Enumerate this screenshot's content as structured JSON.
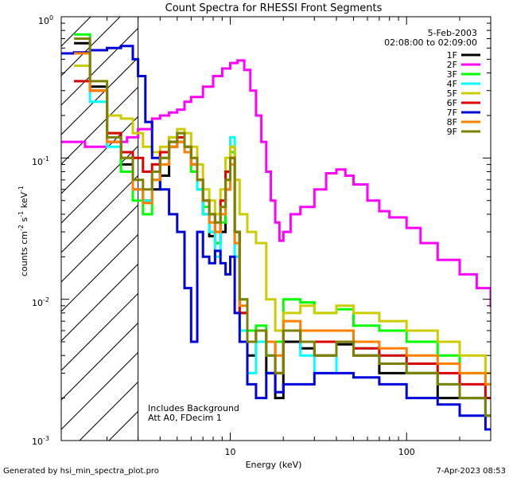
{
  "footer": {
    "generated_by": "Generated by hsi_min_spectra_plot.pro",
    "timestamp": "7-Apr-2023 08:53"
  },
  "chart_data": {
    "type": "line",
    "title": "Count Spectra for RHESSI Front Segments",
    "xlabel": "Energy (keV)",
    "ylabel_parts": {
      "base": "counts cm",
      "exp1": "-2",
      "mid1": " s",
      "exp2": "-1",
      "mid2": " keV",
      "exp3": "-1"
    },
    "xscale": "log",
    "yscale": "log",
    "xlim": [
      1.1,
      300
    ],
    "ylim": [
      0.001,
      1
    ],
    "x_ticks": [
      {
        "value": 10,
        "label": "10"
      },
      {
        "value": 100,
        "label": "100"
      }
    ],
    "y_ticks": [
      {
        "value": 1,
        "mant": "10",
        "exp": "0"
      },
      {
        "value": 0.1,
        "mant": "10",
        "exp": "-1"
      },
      {
        "value": 0.01,
        "mant": "10",
        "exp": "-2"
      },
      {
        "value": 0.001,
        "mant": "10",
        "exp": "-3"
      }
    ],
    "shaded_region": {
      "x": [
        1.1,
        3
      ],
      "style": "diagonal-hatch"
    },
    "date": "5-Feb-2003",
    "time_range": "02:08:00 to 02:09:00",
    "annotations": [
      "Includes Background",
      "Att A0, FDecim 1"
    ],
    "legend_position": "top-right",
    "series": [
      {
        "name": "1F",
        "color": "#000000",
        "x": [
          1.3,
          1.6,
          2.0,
          2.4,
          2.8,
          3.2,
          3.6,
          4.0,
          4.5,
          5.0,
          5.5,
          6.0,
          6.5,
          7.0,
          7.6,
          8.2,
          8.8,
          9.4,
          10.0,
          10.6,
          11.3,
          12.5,
          14.0,
          16.0,
          18.0,
          20.0,
          25.0,
          30.0,
          40.0,
          50.0,
          70.0,
          100.0,
          150.0,
          200.0,
          280.0
        ],
        "y": [
          0.65,
          0.32,
          0.13,
          0.09,
          0.06,
          0.05,
          0.06,
          0.075,
          0.12,
          0.13,
          0.11,
          0.09,
          0.06,
          0.04,
          0.028,
          0.025,
          0.03,
          0.06,
          0.12,
          0.03,
          0.008,
          0.004,
          0.006,
          0.003,
          0.002,
          0.005,
          0.0045,
          0.004,
          0.0048,
          0.004,
          0.003,
          0.003,
          0.002,
          0.002,
          0.0015
        ]
      },
      {
        "name": "2F",
        "color": "#ff00ff",
        "x": [
          1.1,
          1.5,
          2.0,
          2.6,
          3.0,
          3.6,
          4.0,
          4.5,
          5.0,
          5.5,
          6.0,
          7.0,
          8.0,
          9.0,
          10.0,
          11.0,
          12.0,
          13.0,
          14.0,
          15.0,
          16.0,
          17.0,
          18.0,
          19.0,
          20.0,
          22.0,
          25.0,
          30.0,
          35.0,
          40.0,
          45.0,
          50.0,
          60.0,
          70.0,
          80.0,
          100.0,
          120.0,
          150.0,
          200.0,
          250.0,
          300.0
        ],
        "y": [
          0.13,
          0.12,
          0.13,
          0.14,
          0.16,
          0.19,
          0.2,
          0.21,
          0.22,
          0.25,
          0.27,
          0.32,
          0.38,
          0.43,
          0.47,
          0.49,
          0.42,
          0.3,
          0.2,
          0.13,
          0.08,
          0.05,
          0.035,
          0.026,
          0.03,
          0.04,
          0.045,
          0.06,
          0.078,
          0.083,
          0.075,
          0.065,
          0.05,
          0.042,
          0.038,
          0.032,
          0.025,
          0.019,
          0.015,
          0.012,
          0.009
        ]
      },
      {
        "name": "3F",
        "color": "#00ff00",
        "x": [
          1.3,
          1.6,
          2.0,
          2.4,
          2.8,
          3.2,
          3.6,
          4.0,
          4.5,
          5.0,
          5.5,
          6.0,
          6.5,
          7.0,
          7.6,
          8.2,
          8.8,
          9.4,
          10.0,
          10.6,
          11.3,
          12.5,
          14.0,
          16.0,
          18.0,
          20.0,
          25.0,
          30.0,
          40.0,
          50.0,
          70.0,
          100.0,
          150.0,
          200.0,
          280.0
        ],
        "y": [
          0.75,
          0.3,
          0.15,
          0.08,
          0.05,
          0.04,
          0.07,
          0.1,
          0.14,
          0.15,
          0.12,
          0.08,
          0.06,
          0.045,
          0.03,
          0.025,
          0.035,
          0.07,
          0.11,
          0.02,
          0.01,
          0.006,
          0.0065,
          0.004,
          0.005,
          0.01,
          0.0095,
          0.008,
          0.0085,
          0.0065,
          0.006,
          0.005,
          0.004,
          0.003,
          0.0025
        ]
      },
      {
        "name": "4F",
        "color": "#00ffff",
        "x": [
          1.3,
          1.6,
          2.0,
          2.4,
          2.8,
          3.2,
          3.6,
          4.0,
          4.5,
          5.0,
          5.5,
          6.0,
          6.5,
          7.0,
          7.6,
          8.2,
          8.8,
          9.4,
          10.0,
          10.6,
          11.3,
          12.5,
          14.0,
          16.0,
          18.0,
          20.0,
          25.0,
          30.0,
          40.0,
          50.0,
          70.0,
          100.0,
          150.0,
          200.0,
          280.0
        ],
        "y": [
          0.35,
          0.25,
          0.12,
          0.1,
          0.06,
          0.05,
          0.07,
          0.09,
          0.13,
          0.14,
          0.12,
          0.09,
          0.06,
          0.04,
          0.03,
          0.02,
          0.04,
          0.07,
          0.14,
          0.02,
          0.006,
          0.003,
          0.005,
          0.004,
          0.003,
          0.006,
          0.004,
          0.003,
          0.005,
          0.0045,
          0.004,
          0.003,
          0.0025,
          0.002,
          0.0015
        ]
      },
      {
        "name": "5F",
        "color": "#cccc00",
        "x": [
          1.3,
          1.6,
          2.0,
          2.4,
          2.8,
          3.2,
          3.6,
          4.0,
          4.5,
          5.0,
          5.5,
          6.0,
          6.5,
          7.0,
          7.6,
          8.2,
          8.8,
          9.4,
          10.0,
          10.6,
          11.3,
          12.5,
          14.0,
          16.0,
          18.0,
          20.0,
          25.0,
          30.0,
          40.0,
          50.0,
          70.0,
          100.0,
          150.0,
          200.0,
          280.0
        ],
        "y": [
          0.45,
          0.3,
          0.2,
          0.19,
          0.15,
          0.12,
          0.11,
          0.12,
          0.14,
          0.16,
          0.15,
          0.12,
          0.09,
          0.06,
          0.05,
          0.04,
          0.06,
          0.1,
          0.12,
          0.07,
          0.04,
          0.03,
          0.025,
          0.01,
          0.006,
          0.008,
          0.009,
          0.008,
          0.009,
          0.008,
          0.007,
          0.006,
          0.005,
          0.004,
          0.003
        ]
      },
      {
        "name": "6F",
        "color": "#dd0000",
        "x": [
          1.3,
          1.6,
          2.0,
          2.4,
          2.8,
          3.2,
          3.6,
          4.0,
          4.5,
          5.0,
          5.5,
          6.0,
          6.5,
          7.0,
          7.6,
          8.2,
          8.8,
          9.4,
          10.0,
          10.6,
          11.3,
          12.5,
          14.0,
          16.0,
          18.0,
          20.0,
          25.0,
          30.0,
          40.0,
          50.0,
          70.0,
          100.0,
          150.0,
          200.0,
          280.0
        ],
        "y": [
          0.35,
          0.3,
          0.15,
          0.11,
          0.1,
          0.08,
          0.09,
          0.11,
          0.13,
          0.14,
          0.12,
          0.09,
          0.07,
          0.05,
          0.04,
          0.03,
          0.05,
          0.08,
          0.1,
          0.03,
          0.008,
          0.005,
          0.006,
          0.005,
          0.003,
          0.006,
          0.005,
          0.005,
          0.005,
          0.0045,
          0.004,
          0.0035,
          0.003,
          0.0025,
          0.002
        ]
      },
      {
        "name": "7F",
        "color": "#0000dd",
        "x": [
          1.1,
          1.3,
          1.6,
          2.0,
          2.4,
          2.8,
          3.0,
          3.3,
          3.6,
          4.0,
          4.5,
          5.0,
          5.5,
          6.0,
          6.5,
          7.0,
          7.6,
          8.2,
          8.8,
          9.4,
          10.0,
          10.6,
          11.3,
          12.5,
          14.0,
          16.0,
          18.0,
          20.0,
          25.0,
          30.0,
          40.0,
          50.0,
          70.0,
          100.0,
          150.0,
          200.0,
          280.0
        ],
        "y": [
          0.55,
          0.56,
          0.58,
          0.6,
          0.62,
          0.5,
          0.38,
          0.18,
          0.1,
          0.06,
          0.04,
          0.03,
          0.012,
          0.005,
          0.03,
          0.02,
          0.018,
          0.022,
          0.018,
          0.015,
          0.02,
          0.008,
          0.005,
          0.0025,
          0.002,
          0.003,
          0.0022,
          0.0025,
          0.0025,
          0.003,
          0.003,
          0.0028,
          0.0025,
          0.002,
          0.0018,
          0.0015,
          0.0012
        ]
      },
      {
        "name": "8F",
        "color": "#ff8000",
        "x": [
          1.3,
          1.6,
          2.0,
          2.4,
          2.8,
          3.2,
          3.6,
          4.0,
          4.5,
          5.0,
          5.5,
          6.0,
          6.5,
          7.0,
          7.6,
          8.2,
          8.8,
          9.4,
          10.0,
          10.6,
          11.3,
          12.5,
          14.0,
          16.0,
          18.0,
          20.0,
          25.0,
          30.0,
          40.0,
          50.0,
          70.0,
          100.0,
          150.0,
          200.0,
          280.0
        ],
        "y": [
          0.55,
          0.3,
          0.13,
          0.1,
          0.06,
          0.048,
          0.07,
          0.09,
          0.12,
          0.13,
          0.11,
          0.09,
          0.07,
          0.05,
          0.035,
          0.03,
          0.04,
          0.06,
          0.09,
          0.025,
          0.009,
          0.005,
          0.006,
          0.005,
          0.004,
          0.007,
          0.006,
          0.006,
          0.006,
          0.005,
          0.0045,
          0.004,
          0.0035,
          0.003,
          0.0025
        ]
      },
      {
        "name": "9F",
        "color": "#808000",
        "x": [
          1.3,
          1.6,
          2.0,
          2.4,
          2.8,
          3.2,
          3.6,
          4.0,
          4.5,
          5.0,
          5.5,
          6.0,
          6.5,
          7.0,
          7.6,
          8.2,
          8.8,
          9.4,
          10.0,
          10.6,
          11.3,
          12.5,
          14.0,
          16.0,
          18.0,
          20.0,
          25.0,
          30.0,
          40.0,
          50.0,
          70.0,
          100.0,
          150.0,
          200.0,
          280.0
        ],
        "y": [
          0.7,
          0.35,
          0.14,
          0.1,
          0.07,
          0.06,
          0.08,
          0.1,
          0.13,
          0.15,
          0.12,
          0.1,
          0.07,
          0.05,
          0.04,
          0.035,
          0.045,
          0.07,
          0.1,
          0.03,
          0.01,
          0.005,
          0.006,
          0.004,
          0.003,
          0.006,
          0.005,
          0.004,
          0.005,
          0.004,
          0.0035,
          0.003,
          0.0025,
          0.002,
          0.0015
        ]
      }
    ]
  }
}
